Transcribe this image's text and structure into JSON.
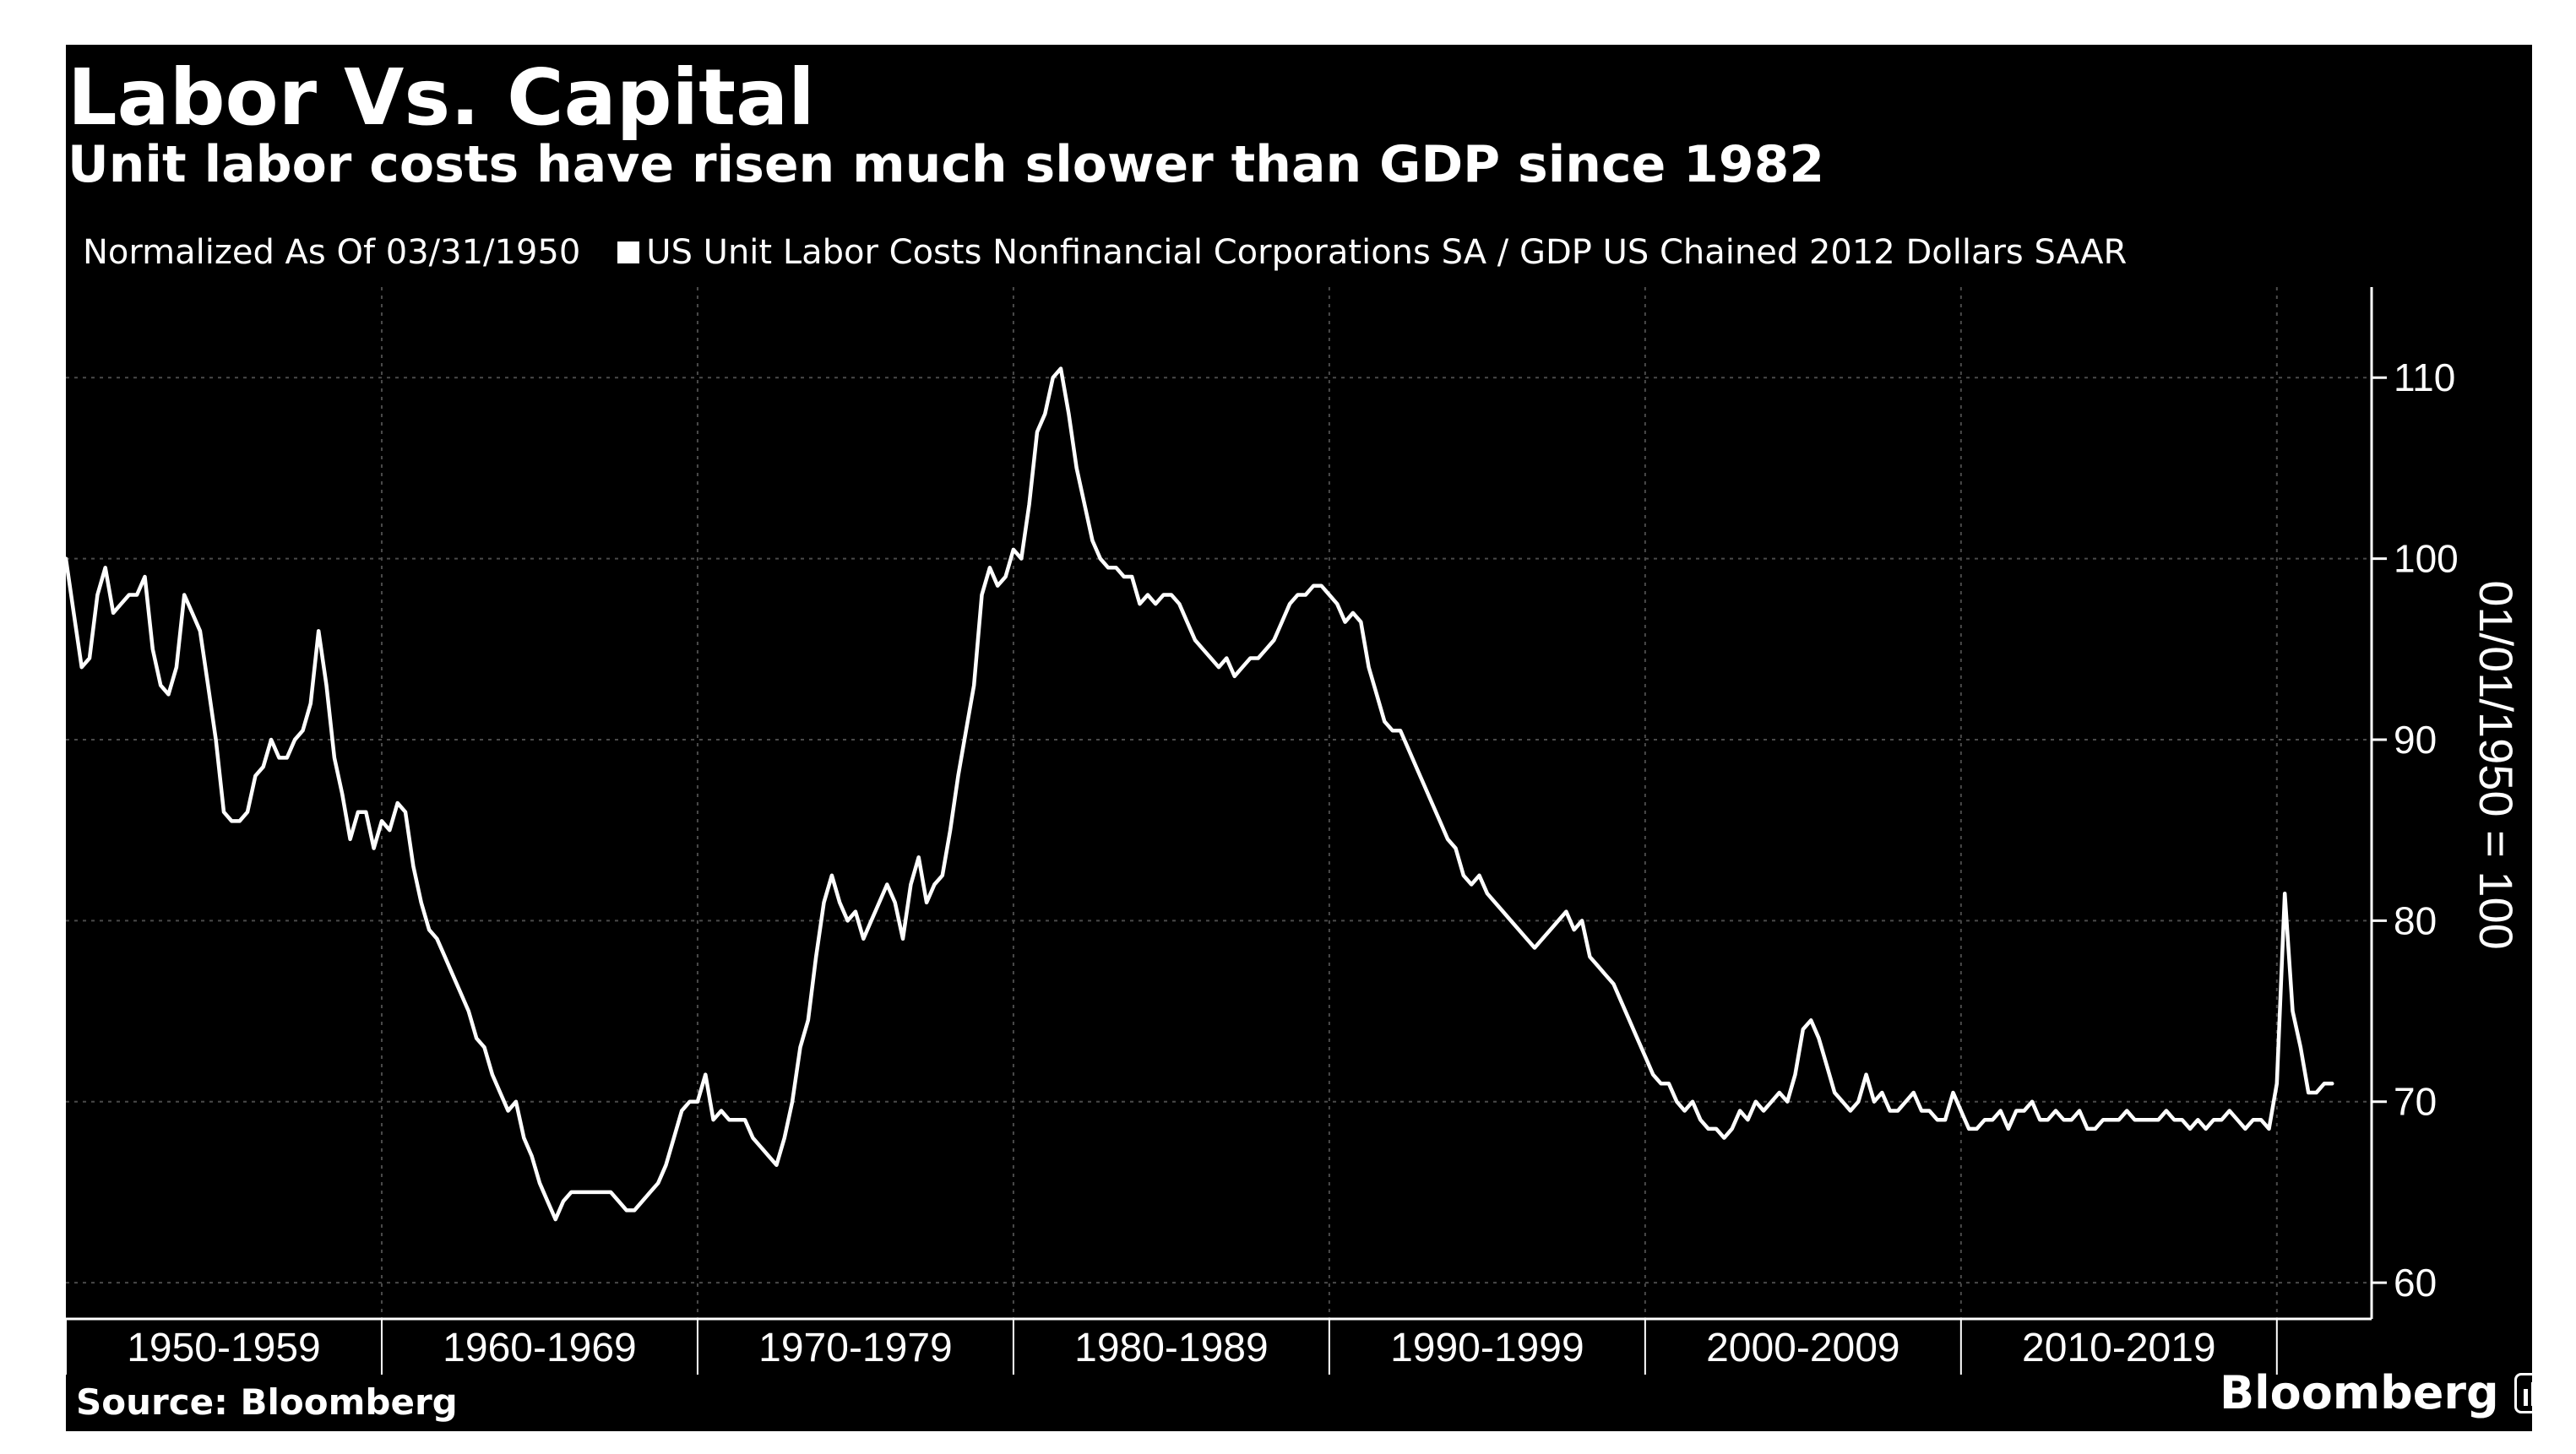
{
  "chart_data": {
    "type": "line",
    "title": "Labor Vs. Capital",
    "subtitle": "Unit labor costs have risen much slower than GDP since 1982",
    "legend_note": "Normalized As Of 03/31/1950",
    "ylabel": "01/01/1950 = 100",
    "ylim": [
      58,
      115
    ],
    "y_ticks": [
      60,
      70,
      80,
      90,
      100,
      110
    ],
    "xlim": [
      1950.0,
      2023.0
    ],
    "x_decade_labels": [
      "1950-1959",
      "1960-1969",
      "1970-1979",
      "1980-1989",
      "1990-1999",
      "2000-2009",
      "2010-2019"
    ],
    "x_decade_starts": [
      1950,
      1960,
      1970,
      1980,
      1990,
      2000,
      2010,
      2020
    ],
    "grid": true,
    "legend_placement": "top-left",
    "colors": {
      "background": "#000000",
      "line": "#ffffff",
      "grid": "#4a4a4a",
      "text": "#ffffff"
    },
    "series": [
      {
        "name": "US Unit Labor Costs Nonfinancial Corporations SA / GDP US Chained 2012 Dollars SAAR",
        "points": [
          [
            1950.0,
            100
          ],
          [
            1950.25,
            97
          ],
          [
            1950.5,
            94
          ],
          [
            1950.75,
            94.5
          ],
          [
            1951.0,
            98
          ],
          [
            1951.25,
            99.5
          ],
          [
            1951.5,
            97
          ],
          [
            1951.75,
            97.5
          ],
          [
            1952.0,
            98
          ],
          [
            1952.25,
            98
          ],
          [
            1952.5,
            99
          ],
          [
            1952.75,
            95
          ],
          [
            1953.0,
            93
          ],
          [
            1953.25,
            92.5
          ],
          [
            1953.5,
            94
          ],
          [
            1953.75,
            98
          ],
          [
            1954.0,
            97
          ],
          [
            1954.25,
            96
          ],
          [
            1954.5,
            93
          ],
          [
            1954.75,
            90
          ],
          [
            1955.0,
            86
          ],
          [
            1955.25,
            85.5
          ],
          [
            1955.5,
            85.5
          ],
          [
            1955.75,
            86
          ],
          [
            1956.0,
            88
          ],
          [
            1956.25,
            88.5
          ],
          [
            1956.5,
            90
          ],
          [
            1956.75,
            89
          ],
          [
            1957.0,
            89
          ],
          [
            1957.25,
            90
          ],
          [
            1957.5,
            90.5
          ],
          [
            1957.75,
            92
          ],
          [
            1958.0,
            96
          ],
          [
            1958.25,
            93
          ],
          [
            1958.5,
            89
          ],
          [
            1958.75,
            87
          ],
          [
            1959.0,
            84.5
          ],
          [
            1959.25,
            86
          ],
          [
            1959.5,
            86
          ],
          [
            1959.75,
            84
          ],
          [
            1960.0,
            85.5
          ],
          [
            1960.25,
            85
          ],
          [
            1960.5,
            86.5
          ],
          [
            1960.75,
            86
          ],
          [
            1961.0,
            83
          ],
          [
            1961.25,
            81
          ],
          [
            1961.5,
            79.5
          ],
          [
            1961.75,
            79
          ],
          [
            1962.0,
            78
          ],
          [
            1962.25,
            77
          ],
          [
            1962.5,
            76
          ],
          [
            1962.75,
            75
          ],
          [
            1963.0,
            73.5
          ],
          [
            1963.25,
            73
          ],
          [
            1963.5,
            71.5
          ],
          [
            1963.75,
            70.5
          ],
          [
            1964.0,
            69.5
          ],
          [
            1964.25,
            70
          ],
          [
            1964.5,
            68
          ],
          [
            1964.75,
            67
          ],
          [
            1965.0,
            65.5
          ],
          [
            1965.25,
            64.5
          ],
          [
            1965.5,
            63.5
          ],
          [
            1965.75,
            64.5
          ],
          [
            1966.0,
            65
          ],
          [
            1966.25,
            65
          ],
          [
            1966.5,
            65
          ],
          [
            1966.75,
            65
          ],
          [
            1967.0,
            65
          ],
          [
            1967.25,
            65
          ],
          [
            1967.5,
            64.5
          ],
          [
            1967.75,
            64
          ],
          [
            1968.0,
            64
          ],
          [
            1968.25,
            64.5
          ],
          [
            1968.5,
            65
          ],
          [
            1968.75,
            65.5
          ],
          [
            1969.0,
            66.5
          ],
          [
            1969.25,
            68
          ],
          [
            1969.5,
            69.5
          ],
          [
            1969.75,
            70
          ],
          [
            1970.0,
            70
          ],
          [
            1970.25,
            71.5
          ],
          [
            1970.5,
            69
          ],
          [
            1970.75,
            69.5
          ],
          [
            1971.0,
            69
          ],
          [
            1971.25,
            69
          ],
          [
            1971.5,
            69
          ],
          [
            1971.75,
            68
          ],
          [
            1972.0,
            67.5
          ],
          [
            1972.25,
            67
          ],
          [
            1972.5,
            66.5
          ],
          [
            1972.75,
            68
          ],
          [
            1973.0,
            70
          ],
          [
            1973.25,
            73
          ],
          [
            1973.5,
            74.5
          ],
          [
            1973.75,
            78
          ],
          [
            1974.0,
            81
          ],
          [
            1974.25,
            82.5
          ],
          [
            1974.5,
            81
          ],
          [
            1974.75,
            80
          ],
          [
            1975.0,
            80.5
          ],
          [
            1975.25,
            79
          ],
          [
            1975.5,
            80
          ],
          [
            1975.75,
            81
          ],
          [
            1976.0,
            82
          ],
          [
            1976.25,
            81
          ],
          [
            1976.5,
            79
          ],
          [
            1976.75,
            82
          ],
          [
            1977.0,
            83.5
          ],
          [
            1977.25,
            81
          ],
          [
            1977.5,
            82
          ],
          [
            1977.75,
            82.5
          ],
          [
            1978.0,
            85
          ],
          [
            1978.25,
            88
          ],
          [
            1978.5,
            90.5
          ],
          [
            1978.75,
            93
          ],
          [
            1979.0,
            98
          ],
          [
            1979.25,
            99.5
          ],
          [
            1979.5,
            98.5
          ],
          [
            1979.75,
            99
          ],
          [
            1980.0,
            100.5
          ],
          [
            1980.25,
            100
          ],
          [
            1980.5,
            103
          ],
          [
            1980.75,
            107
          ],
          [
            1981.0,
            108
          ],
          [
            1981.25,
            110
          ],
          [
            1981.5,
            110.5
          ],
          [
            1981.75,
            108
          ],
          [
            1982.0,
            105
          ],
          [
            1982.25,
            103
          ],
          [
            1982.5,
            101
          ],
          [
            1982.75,
            100
          ],
          [
            1983.0,
            99.5
          ],
          [
            1983.25,
            99.5
          ],
          [
            1983.5,
            99
          ],
          [
            1983.75,
            99
          ],
          [
            1984.0,
            97.5
          ],
          [
            1984.25,
            98
          ],
          [
            1984.5,
            97.5
          ],
          [
            1984.75,
            98
          ],
          [
            1985.0,
            98
          ],
          [
            1985.25,
            97.5
          ],
          [
            1985.5,
            96.5
          ],
          [
            1985.75,
            95.5
          ],
          [
            1986.0,
            95
          ],
          [
            1986.25,
            94.5
          ],
          [
            1986.5,
            94
          ],
          [
            1986.75,
            94.5
          ],
          [
            1987.0,
            93.5
          ],
          [
            1987.25,
            94
          ],
          [
            1987.5,
            94.5
          ],
          [
            1987.75,
            94.5
          ],
          [
            1988.0,
            95
          ],
          [
            1988.25,
            95.5
          ],
          [
            1988.5,
            96.5
          ],
          [
            1988.75,
            97.5
          ],
          [
            1989.0,
            98
          ],
          [
            1989.25,
            98
          ],
          [
            1989.5,
            98.5
          ],
          [
            1989.75,
            98.5
          ],
          [
            1990.0,
            98
          ],
          [
            1990.25,
            97.5
          ],
          [
            1990.5,
            96.5
          ],
          [
            1990.75,
            97
          ],
          [
            1991.0,
            96.5
          ],
          [
            1991.25,
            94
          ],
          [
            1991.5,
            92.5
          ],
          [
            1991.75,
            91
          ],
          [
            1992.0,
            90.5
          ],
          [
            1992.25,
            90.5
          ],
          [
            1992.5,
            89.5
          ],
          [
            1992.75,
            88.5
          ],
          [
            1993.0,
            87.5
          ],
          [
            1993.25,
            86.5
          ],
          [
            1993.5,
            85.5
          ],
          [
            1993.75,
            84.5
          ],
          [
            1994.0,
            84
          ],
          [
            1994.25,
            82.5
          ],
          [
            1994.5,
            82
          ],
          [
            1994.75,
            82.5
          ],
          [
            1995.0,
            81.5
          ],
          [
            1995.25,
            81
          ],
          [
            1995.5,
            80.5
          ],
          [
            1995.75,
            80
          ],
          [
            1996.0,
            79.5
          ],
          [
            1996.25,
            79
          ],
          [
            1996.5,
            78.5
          ],
          [
            1996.75,
            79
          ],
          [
            1997.0,
            79.5
          ],
          [
            1997.25,
            80
          ],
          [
            1997.5,
            80.5
          ],
          [
            1997.75,
            79.5
          ],
          [
            1998.0,
            80
          ],
          [
            1998.25,
            78
          ],
          [
            1998.5,
            77.5
          ],
          [
            1998.75,
            77
          ],
          [
            1999.0,
            76.5
          ],
          [
            1999.25,
            75.5
          ],
          [
            1999.5,
            74.5
          ],
          [
            1999.75,
            73.5
          ],
          [
            2000.0,
            72.5
          ],
          [
            2000.25,
            71.5
          ],
          [
            2000.5,
            71
          ],
          [
            2000.75,
            71
          ],
          [
            2001.0,
            70
          ],
          [
            2001.25,
            69.5
          ],
          [
            2001.5,
            70
          ],
          [
            2001.75,
            69
          ],
          [
            2002.0,
            68.5
          ],
          [
            2002.25,
            68.5
          ],
          [
            2002.5,
            68
          ],
          [
            2002.75,
            68.5
          ],
          [
            2003.0,
            69.5
          ],
          [
            2003.25,
            69
          ],
          [
            2003.5,
            70
          ],
          [
            2003.75,
            69.5
          ],
          [
            2004.0,
            70
          ],
          [
            2004.25,
            70.5
          ],
          [
            2004.5,
            70
          ],
          [
            2004.75,
            71.5
          ],
          [
            2005.0,
            74
          ],
          [
            2005.25,
            74.5
          ],
          [
            2005.5,
            73.5
          ],
          [
            2005.75,
            72
          ],
          [
            2006.0,
            70.5
          ],
          [
            2006.25,
            70
          ],
          [
            2006.5,
            69.5
          ],
          [
            2006.75,
            70
          ],
          [
            2007.0,
            71.5
          ],
          [
            2007.25,
            70
          ],
          [
            2007.5,
            70.5
          ],
          [
            2007.75,
            69.5
          ],
          [
            2008.0,
            69.5
          ],
          [
            2008.25,
            70
          ],
          [
            2008.5,
            70.5
          ],
          [
            2008.75,
            69.5
          ],
          [
            2009.0,
            69.5
          ],
          [
            2009.25,
            69
          ],
          [
            2009.5,
            69
          ],
          [
            2009.75,
            70.5
          ],
          [
            2010.0,
            69.5
          ],
          [
            2010.25,
            68.5
          ],
          [
            2010.5,
            68.5
          ],
          [
            2010.75,
            69
          ],
          [
            2011.0,
            69
          ],
          [
            2011.25,
            69.5
          ],
          [
            2011.5,
            68.5
          ],
          [
            2011.75,
            69.5
          ],
          [
            2012.0,
            69.5
          ],
          [
            2012.25,
            70
          ],
          [
            2012.5,
            69
          ],
          [
            2012.75,
            69
          ],
          [
            2013.0,
            69.5
          ],
          [
            2013.25,
            69
          ],
          [
            2013.5,
            69
          ],
          [
            2013.75,
            69.5
          ],
          [
            2014.0,
            68.5
          ],
          [
            2014.25,
            68.5
          ],
          [
            2014.5,
            69
          ],
          [
            2014.75,
            69
          ],
          [
            2015.0,
            69
          ],
          [
            2015.25,
            69.5
          ],
          [
            2015.5,
            69
          ],
          [
            2015.75,
            69
          ],
          [
            2016.0,
            69
          ],
          [
            2016.25,
            69
          ],
          [
            2016.5,
            69.5
          ],
          [
            2016.75,
            69
          ],
          [
            2017.0,
            69
          ],
          [
            2017.25,
            68.5
          ],
          [
            2017.5,
            69
          ],
          [
            2017.75,
            68.5
          ],
          [
            2018.0,
            69
          ],
          [
            2018.25,
            69
          ],
          [
            2018.5,
            69.5
          ],
          [
            2018.75,
            69
          ],
          [
            2019.0,
            68.5
          ],
          [
            2019.25,
            69
          ],
          [
            2019.5,
            69
          ],
          [
            2019.75,
            68.5
          ],
          [
            2020.0,
            71
          ],
          [
            2020.25,
            81.5
          ],
          [
            2020.5,
            75
          ],
          [
            2020.75,
            73
          ],
          [
            2021.0,
            70.5
          ],
          [
            2021.25,
            70.5
          ],
          [
            2021.5,
            71
          ],
          [
            2021.75,
            71
          ]
        ]
      }
    ]
  },
  "footer": {
    "source": "Source: Bloomberg",
    "brand": "Bloomberg"
  },
  "icons": {
    "brand_icon": "bloomberg-terminal-icon"
  }
}
